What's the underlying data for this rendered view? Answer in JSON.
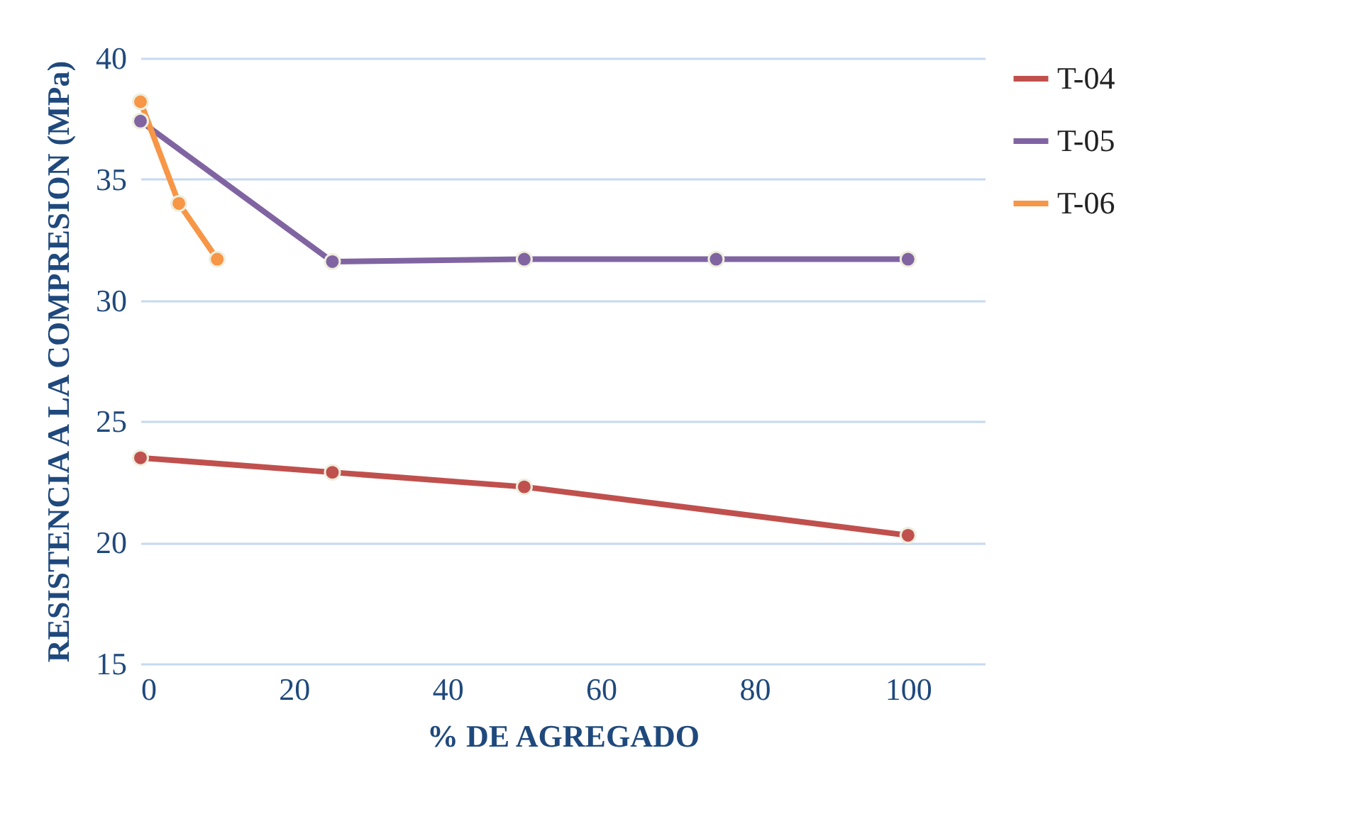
{
  "chart_data": {
    "type": "line",
    "xlabel": "% DE AGREGADO",
    "ylabel": "RESISTENCIA A LA COMPRESION (MPa)",
    "xlim": [
      0,
      110
    ],
    "xticks": [
      0,
      20,
      40,
      60,
      80,
      100
    ],
    "ylim": [
      15,
      40
    ],
    "yticks": [
      15,
      20,
      25,
      30,
      35,
      40
    ],
    "grid": "y",
    "legend": "right",
    "marker": "circle",
    "line_style": "solid",
    "series": [
      {
        "name": "T-04",
        "color": "#c0504d",
        "x": [
          0,
          25,
          50,
          100
        ],
        "values": [
          23.5,
          22.9,
          22.3,
          20.3
        ]
      },
      {
        "name": "T-05",
        "color": "#8064a2",
        "x": [
          0,
          25,
          50,
          75,
          100
        ],
        "values": [
          37.4,
          31.6,
          31.7,
          31.7,
          31.7
        ]
      },
      {
        "name": "T-06",
        "color": "#f79646",
        "x": [
          0,
          5,
          10
        ],
        "values": [
          38.2,
          34.0,
          31.7
        ]
      }
    ]
  }
}
